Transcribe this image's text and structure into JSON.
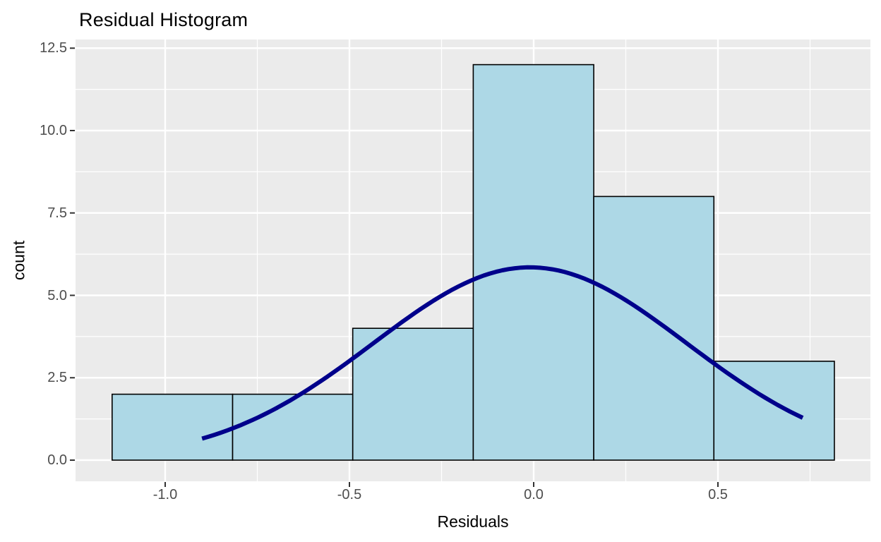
{
  "chart_data": {
    "type": "bar",
    "subtype": "histogram-with-density-curve",
    "title": "Residual Histogram",
    "xlabel": "Residuals",
    "ylabel": "count",
    "bins": {
      "edges": [
        -1.144,
        -0.817,
        -0.491,
        -0.164,
        0.163,
        0.489,
        0.816
      ],
      "counts": [
        2,
        2,
        4,
        12,
        8,
        3
      ]
    },
    "curve": {
      "shape": "normal-density",
      "mean": -0.01,
      "sd": 0.425,
      "peak": 5.85,
      "x_start": -0.9,
      "x_end": 0.73
    },
    "x_ticks": [
      {
        "value": -1.0,
        "label": "-1.0"
      },
      {
        "value": -0.5,
        "label": "-0.5"
      },
      {
        "value": 0.0,
        "label": "0.0"
      },
      {
        "value": 0.5,
        "label": "0.5"
      }
    ],
    "y_ticks": [
      {
        "value": 0.0,
        "label": "0.0"
      },
      {
        "value": 2.5,
        "label": "2.5"
      },
      {
        "value": 5.0,
        "label": "5.0"
      },
      {
        "value": 7.5,
        "label": "7.5"
      },
      {
        "value": 10.0,
        "label": "10.0"
      },
      {
        "value": 12.5,
        "label": "12.5"
      }
    ],
    "xlim": [
      -1.243,
      0.914
    ],
    "ylim": [
      -0.642,
      12.76
    ],
    "grid": "white major and minor gridlines on gray panel",
    "legend": "none",
    "colors": {
      "page_bg": "#FFFFFF",
      "panel_bg": "#EBEBEB",
      "grid": "#FFFFFF",
      "bar_fill": "#ADD8E6",
      "bar_stroke": "#000000",
      "curve": "#00008B",
      "tick_mark": "#333333",
      "tick_text": "#4D4D4D",
      "title_text": "#000000"
    }
  }
}
